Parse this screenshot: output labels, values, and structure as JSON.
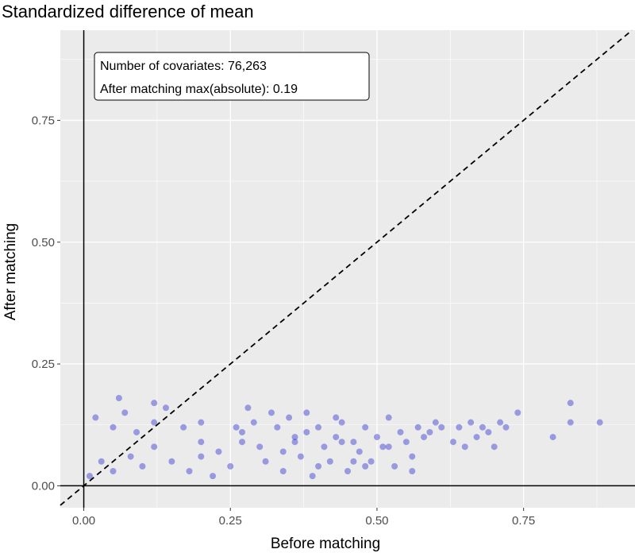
{
  "chart_data": {
    "type": "scatter",
    "title": "Standardized difference of mean",
    "xlabel": "Before matching",
    "ylabel": "After matching",
    "xlim": [
      -0.04,
      0.94
    ],
    "ylim": [
      -0.045,
      0.935
    ],
    "x_ticks": [
      "0.00",
      "0.25",
      "0.50",
      "0.75"
    ],
    "y_ticks": [
      "0.00",
      "0.25",
      "0.50",
      "0.75"
    ],
    "grid": true,
    "reference_line": "y = x (dashed)",
    "axis_lines": "x = 0 and y = 0 (solid)",
    "point_color": "#0000CC",
    "point_opacity": 0.35,
    "annotation": {
      "line1": "Number of covariates: 76,263",
      "line2": "After matching max(absolute): 0.19"
    },
    "series": [
      {
        "points": [
          [
            0.01,
            0.02
          ],
          [
            0.03,
            0.05
          ],
          [
            0.05,
            0.03
          ],
          [
            0.08,
            0.06
          ],
          [
            0.1,
            0.04
          ],
          [
            0.12,
            0.08
          ],
          [
            0.15,
            0.05
          ],
          [
            0.18,
            0.03
          ],
          [
            0.2,
            0.06
          ],
          [
            0.22,
            0.02
          ],
          [
            0.02,
            0.14
          ],
          [
            0.05,
            0.12
          ],
          [
            0.07,
            0.15
          ],
          [
            0.09,
            0.11
          ],
          [
            0.12,
            0.13
          ],
          [
            0.14,
            0.16
          ],
          [
            0.17,
            0.12
          ],
          [
            0.2,
            0.09
          ],
          [
            0.23,
            0.07
          ],
          [
            0.25,
            0.04
          ],
          [
            0.27,
            0.11
          ],
          [
            0.28,
            0.16
          ],
          [
            0.3,
            0.08
          ],
          [
            0.31,
            0.05
          ],
          [
            0.33,
            0.12
          ],
          [
            0.34,
            0.03
          ],
          [
            0.35,
            0.14
          ],
          [
            0.36,
            0.1
          ],
          [
            0.37,
            0.06
          ],
          [
            0.38,
            0.15
          ],
          [
            0.39,
            0.02
          ],
          [
            0.4,
            0.12
          ],
          [
            0.41,
            0.08
          ],
          [
            0.42,
            0.05
          ],
          [
            0.43,
            0.1
          ],
          [
            0.44,
            0.13
          ],
          [
            0.45,
            0.03
          ],
          [
            0.46,
            0.09
          ],
          [
            0.47,
            0.07
          ],
          [
            0.48,
            0.12
          ],
          [
            0.49,
            0.05
          ],
          [
            0.5,
            0.1
          ],
          [
            0.51,
            0.08
          ],
          [
            0.52,
            0.14
          ],
          [
            0.53,
            0.04
          ],
          [
            0.54,
            0.11
          ],
          [
            0.55,
            0.09
          ],
          [
            0.56,
            0.06
          ],
          [
            0.57,
            0.12
          ],
          [
            0.58,
            0.1
          ],
          [
            0.59,
            0.11
          ],
          [
            0.6,
            0.13
          ],
          [
            0.61,
            0.12
          ],
          [
            0.63,
            0.09
          ],
          [
            0.64,
            0.12
          ],
          [
            0.65,
            0.08
          ],
          [
            0.66,
            0.13
          ],
          [
            0.67,
            0.1
          ],
          [
            0.68,
            0.12
          ],
          [
            0.69,
            0.11
          ],
          [
            0.7,
            0.08
          ],
          [
            0.71,
            0.13
          ],
          [
            0.72,
            0.12
          ],
          [
            0.74,
            0.15
          ],
          [
            0.8,
            0.1
          ],
          [
            0.83,
            0.17
          ],
          [
            0.83,
            0.13
          ],
          [
            0.88,
            0.13
          ],
          [
            0.06,
            0.18
          ],
          [
            0.12,
            0.17
          ],
          [
            0.2,
            0.13
          ],
          [
            0.26,
            0.12
          ],
          [
            0.32,
            0.15
          ],
          [
            0.36,
            0.09
          ],
          [
            0.43,
            0.14
          ],
          [
            0.27,
            0.09
          ],
          [
            0.29,
            0.13
          ],
          [
            0.34,
            0.07
          ],
          [
            0.4,
            0.04
          ],
          [
            0.46,
            0.05
          ],
          [
            0.38,
            0.11
          ],
          [
            0.44,
            0.09
          ],
          [
            0.48,
            0.04
          ],
          [
            0.52,
            0.08
          ],
          [
            0.56,
            0.03
          ]
        ]
      }
    ]
  }
}
